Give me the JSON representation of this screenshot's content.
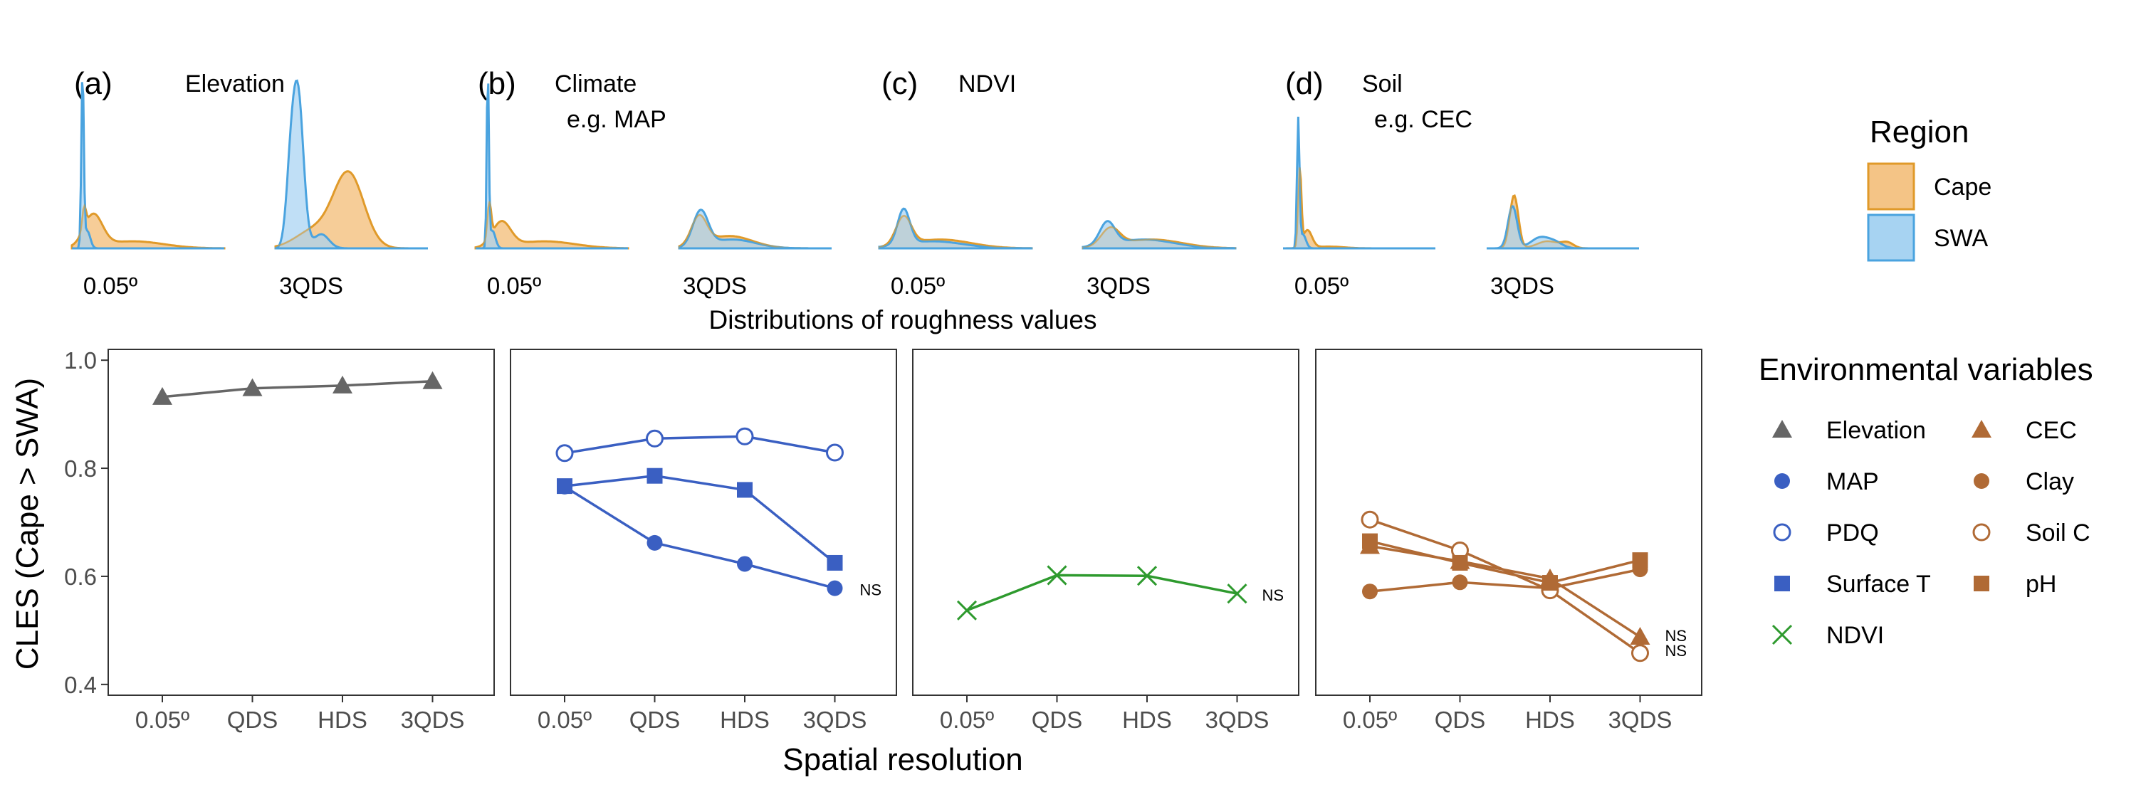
{
  "colors": {
    "cape_fill": "#f4c486",
    "cape_line": "#e09a2a",
    "swa_fill": "#a7d3f2",
    "swa_line": "#4aa3df",
    "elevation": "#666666",
    "climate": "#3a5fc2",
    "ndvi": "#2e9a2e",
    "soil": "#b06a35"
  },
  "chart_data": [
    {
      "type": "area",
      "title": "Distributions of roughness values",
      "legend": {
        "title": "Region",
        "entries": [
          "Cape",
          "SWA"
        ],
        "placement": "right"
      },
      "x_labels": [
        "0.05º",
        "3QDS"
      ],
      "panels": [
        {
          "tag": "(a)",
          "label_lines": [
            "Elevation"
          ]
        },
        {
          "tag": "(b)",
          "label_lines": [
            "Climate",
            "e.g. MAP"
          ]
        },
        {
          "tag": "(c)",
          "label_lines": [
            "NDVI"
          ]
        },
        {
          "tag": "(d)",
          "label_lines": [
            "Soil",
            "e.g. CEC"
          ]
        }
      ]
    },
    {
      "type": "line",
      "xlabel": "Spatial resolution",
      "ylabel": "CLES (Cape > SWA)",
      "categories": [
        "0.05º",
        "QDS",
        "HDS",
        "3QDS"
      ],
      "ylim": [
        0.38,
        1.02
      ],
      "yticks": [
        0.4,
        0.6,
        0.8,
        1.0
      ],
      "ytick_labels": [
        "0.4",
        "0.6",
        "0.8",
        "1.0"
      ],
      "grid": false,
      "legend": {
        "title": "Environmental variables",
        "placement": "right"
      },
      "panels": [
        {
          "series": [
            {
              "name": "Elevation",
              "marker": "triangle",
              "color": "#666666",
              "values": [
                0.932,
                0.948,
                0.953,
                0.961
              ]
            }
          ],
          "annotations": []
        },
        {
          "series": [
            {
              "name": "MAP",
              "marker": "circle",
              "color": "#3a5fc2",
              "values": [
                0.766,
                0.662,
                0.623,
                0.578
              ]
            },
            {
              "name": "PDQ",
              "marker": "open-circle",
              "color": "#3a5fc2",
              "values": [
                0.828,
                0.855,
                0.859,
                0.829
              ]
            },
            {
              "name": "Surface T",
              "marker": "square",
              "color": "#3a5fc2",
              "values": [
                0.767,
                0.786,
                0.76,
                0.625
              ]
            }
          ],
          "annotations": [
            {
              "text": "NS",
              "x": "3QDS",
              "y": 0.578
            }
          ]
        },
        {
          "series": [
            {
              "name": "NDVI",
              "marker": "x",
              "color": "#2e9a2e",
              "values": [
                0.537,
                0.602,
                0.601,
                0.568
              ]
            }
          ],
          "annotations": [
            {
              "text": "NS",
              "x": "3QDS",
              "y": 0.568
            }
          ]
        },
        {
          "series": [
            {
              "name": "CEC",
              "marker": "triangle",
              "color": "#b06a35",
              "values": [
                0.656,
                0.628,
                0.596,
                0.488
              ]
            },
            {
              "name": "Clay",
              "marker": "circle",
              "color": "#b06a35",
              "values": [
                0.572,
                0.589,
                0.578,
                0.613
              ]
            },
            {
              "name": "Soil C",
              "marker": "open-circle",
              "color": "#b06a35",
              "values": [
                0.705,
                0.648,
                0.574,
                0.458
              ]
            },
            {
              "name": "pH",
              "marker": "square",
              "color": "#b06a35",
              "values": [
                0.665,
                0.625,
                0.588,
                0.63
              ]
            }
          ],
          "annotations": [
            {
              "text": "NS",
              "x": "3QDS",
              "y": 0.488
            },
            {
              "text": "NS",
              "x": "3QDS",
              "y": 0.458
            }
          ]
        }
      ]
    }
  ]
}
